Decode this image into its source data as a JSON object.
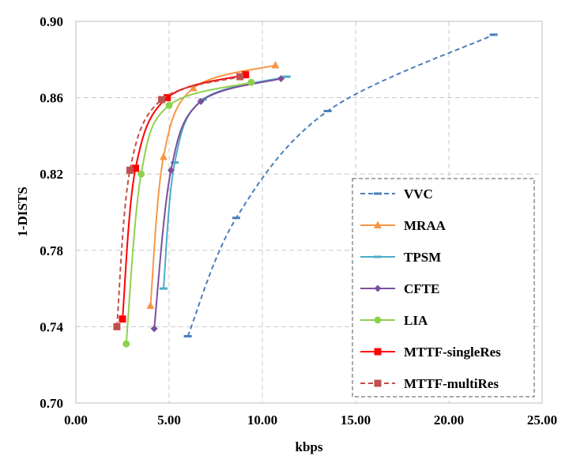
{
  "chart_data": {
    "type": "line",
    "title": "",
    "xlabel": "kbps",
    "ylabel": "1-DISTS",
    "xlim": [
      0,
      25
    ],
    "ylim": [
      0.7,
      0.9
    ],
    "xticks": [
      0,
      5,
      10,
      15,
      20,
      25
    ],
    "xtick_labels": [
      "0.00",
      "5.00",
      "10.00",
      "15.00",
      "20.00",
      "25.00"
    ],
    "yticks": [
      0.7,
      0.74,
      0.78,
      0.82,
      0.86,
      0.9
    ],
    "ytick_labels": [
      "0.70",
      "0.74",
      "0.78",
      "0.82",
      "0.86",
      "0.90"
    ],
    "grid": true,
    "legend_position": "bottom-right",
    "series": [
      {
        "name": "VVC",
        "color": "#4a7ebb",
        "marker": "dash",
        "dashed": true,
        "x": [
          6.0,
          8.6,
          13.5,
          22.4
        ],
        "y": [
          0.735,
          0.797,
          0.853,
          0.893
        ]
      },
      {
        "name": "MRAA",
        "color": "#f79646",
        "marker": "triangle",
        "dashed": false,
        "x": [
          4.0,
          4.7,
          6.3,
          10.7
        ],
        "y": [
          0.751,
          0.829,
          0.865,
          0.877
        ]
      },
      {
        "name": "TPSM",
        "color": "#4bacc6",
        "marker": "dash",
        "dashed": false,
        "x": [
          4.7,
          5.3,
          6.8,
          11.3
        ],
        "y": [
          0.76,
          0.826,
          0.859,
          0.871
        ]
      },
      {
        "name": "CFTE",
        "color": "#7b4f9d",
        "marker": "diamond",
        "dashed": false,
        "x": [
          4.2,
          5.1,
          6.7,
          11.0
        ],
        "y": [
          0.739,
          0.822,
          0.858,
          0.87
        ]
      },
      {
        "name": "LIA",
        "color": "#8fd14f",
        "marker": "circle",
        "dashed": false,
        "x": [
          2.7,
          3.5,
          5.0,
          9.4
        ],
        "y": [
          0.731,
          0.82,
          0.856,
          0.868
        ]
      },
      {
        "name": "MTTF-singleRes",
        "color": "#ff0000",
        "marker": "square",
        "dashed": false,
        "x": [
          2.5,
          3.2,
          4.9,
          9.1
        ],
        "y": [
          0.744,
          0.823,
          0.86,
          0.872
        ]
      },
      {
        "name": "MTTF-multiRes",
        "color": "#c0504d",
        "marker": "square",
        "dashed": true,
        "x": [
          2.2,
          2.9,
          4.6,
          8.8
        ],
        "y": [
          0.74,
          0.822,
          0.859,
          0.871
        ]
      }
    ]
  }
}
